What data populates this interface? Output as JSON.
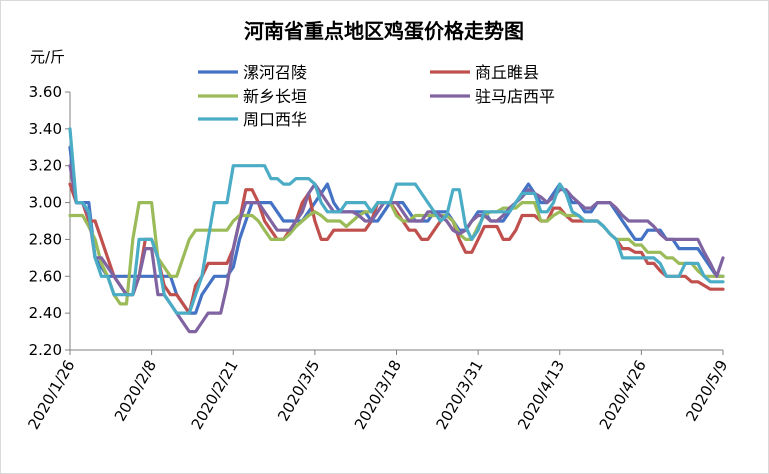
{
  "chart_data": {
    "type": "line",
    "title": "河南省重点地区鸡蛋价格走势图",
    "ylabel": "元/斤",
    "ylim": [
      2.2,
      3.6
    ],
    "yticks": [
      "2.20",
      "2.40",
      "2.60",
      "2.80",
      "3.00",
      "3.20",
      "3.40",
      "3.60"
    ],
    "xtick_labels": [
      "2020/1/26",
      "2020/2/8",
      "2020/2/21",
      "2020/3/5",
      "2020/3/18",
      "2020/3/31",
      "2020/4/13",
      "2020/4/26",
      "2020/5/9"
    ],
    "grid": false,
    "legend_position": "top",
    "series": [
      {
        "name": "漯河召陵",
        "color": "#4472C4",
        "values": [
          3.3,
          3.0,
          3.0,
          3.0,
          2.7,
          2.65,
          2.6,
          2.6,
          2.6,
          2.6,
          2.6,
          2.6,
          2.6,
          2.6,
          2.6,
          2.6,
          2.6,
          2.5,
          2.45,
          2.4,
          2.4,
          2.5,
          2.55,
          2.6,
          2.6,
          2.6,
          2.65,
          2.8,
          2.9,
          3.0,
          3.0,
          3.0,
          3.0,
          2.95,
          2.9,
          2.9,
          2.9,
          2.9,
          2.95,
          3.0,
          3.05,
          3.1,
          3.0,
          2.95,
          2.95,
          2.95,
          2.95,
          2.95,
          2.9,
          2.9,
          2.95,
          3.0,
          3.0,
          3.0,
          2.95,
          2.9,
          2.9,
          2.9,
          2.95,
          2.95,
          2.95,
          2.9,
          2.85,
          2.85,
          2.9,
          2.95,
          2.95,
          2.9,
          2.9,
          2.9,
          2.95,
          3.0,
          3.05,
          3.1,
          3.05,
          3.0,
          3.0,
          3.05,
          3.1,
          3.05,
          3.0,
          3.0,
          2.95,
          2.95,
          3.0,
          3.0,
          3.0,
          2.95,
          2.9,
          2.85,
          2.8,
          2.8,
          2.85,
          2.85,
          2.85,
          2.8,
          2.8,
          2.75,
          2.75,
          2.75,
          2.75,
          2.7,
          2.65,
          2.6,
          2.6
        ]
      },
      {
        "name": "商丘睢县",
        "color": "#C0504D",
        "values": [
          3.1,
          3.0,
          3.0,
          2.9,
          2.9,
          2.8,
          2.7,
          2.6,
          2.55,
          2.5,
          2.5,
          2.6,
          2.8,
          2.8,
          2.7,
          2.55,
          2.5,
          2.5,
          2.45,
          2.4,
          2.55,
          2.6,
          2.67,
          2.67,
          2.67,
          2.67,
          2.75,
          2.9,
          3.07,
          3.07,
          3.0,
          2.9,
          2.85,
          2.8,
          2.8,
          2.85,
          2.9,
          3.0,
          3.05,
          2.9,
          2.8,
          2.8,
          2.85,
          2.85,
          2.85,
          2.85,
          2.85,
          2.85,
          2.9,
          3.0,
          3.0,
          3.0,
          2.95,
          2.9,
          2.85,
          2.85,
          2.8,
          2.8,
          2.85,
          2.9,
          2.93,
          2.9,
          2.8,
          2.73,
          2.73,
          2.8,
          2.87,
          2.87,
          2.87,
          2.8,
          2.8,
          2.85,
          2.93,
          2.93,
          2.93,
          2.9,
          2.9,
          2.97,
          2.97,
          2.93,
          2.9,
          2.9,
          2.9,
          2.9,
          2.9,
          2.87,
          2.83,
          2.8,
          2.75,
          2.75,
          2.73,
          2.73,
          2.67,
          2.67,
          2.63,
          2.6,
          2.6,
          2.6,
          2.6,
          2.57,
          2.57,
          2.55,
          2.53,
          2.53,
          2.53
        ]
      },
      {
        "name": "新乡长垣",
        "color": "#9BBB59",
        "values": [
          2.93,
          2.93,
          2.93,
          2.87,
          2.8,
          2.67,
          2.6,
          2.5,
          2.45,
          2.45,
          2.8,
          3.0,
          3.0,
          3.0,
          2.7,
          2.65,
          2.6,
          2.6,
          2.7,
          2.8,
          2.85,
          2.85,
          2.85,
          2.85,
          2.85,
          2.85,
          2.9,
          2.93,
          2.93,
          2.93,
          2.9,
          2.85,
          2.8,
          2.8,
          2.8,
          2.83,
          2.87,
          2.9,
          2.93,
          2.95,
          2.93,
          2.9,
          2.9,
          2.9,
          2.87,
          2.9,
          2.93,
          2.95,
          2.95,
          3.0,
          3.0,
          3.0,
          2.93,
          2.9,
          2.9,
          2.93,
          2.93,
          2.93,
          2.93,
          2.93,
          2.93,
          2.9,
          2.83,
          2.8,
          2.8,
          2.87,
          2.93,
          2.95,
          2.95,
          2.97,
          2.97,
          2.97,
          3.0,
          3.0,
          3.0,
          2.9,
          2.9,
          2.93,
          2.95,
          2.93,
          2.93,
          2.93,
          2.9,
          2.9,
          2.9,
          2.87,
          2.83,
          2.8,
          2.8,
          2.8,
          2.77,
          2.77,
          2.73,
          2.73,
          2.73,
          2.7,
          2.7,
          2.67,
          2.67,
          2.67,
          2.63,
          2.6,
          2.6,
          2.6,
          2.6
        ]
      },
      {
        "name": "驻马店西平",
        "color": "#8064A2",
        "values": [
          3.2,
          3.0,
          3.0,
          2.93,
          2.7,
          2.7,
          2.65,
          2.6,
          2.55,
          2.5,
          2.5,
          2.6,
          2.75,
          2.75,
          2.5,
          2.5,
          2.45,
          2.4,
          2.35,
          2.3,
          2.3,
          2.35,
          2.4,
          2.4,
          2.4,
          2.55,
          2.75,
          2.9,
          3.0,
          3.0,
          3.0,
          2.95,
          2.9,
          2.85,
          2.85,
          2.85,
          2.9,
          2.95,
          3.05,
          3.1,
          3.05,
          3.0,
          2.95,
          2.95,
          2.95,
          2.95,
          2.93,
          2.9,
          2.9,
          2.95,
          3.0,
          3.0,
          3.0,
          2.95,
          2.9,
          2.9,
          2.9,
          2.95,
          2.95,
          2.93,
          2.9,
          2.85,
          2.83,
          2.85,
          2.9,
          2.93,
          2.93,
          2.9,
          2.9,
          2.93,
          2.97,
          3.0,
          3.03,
          3.07,
          3.05,
          3.03,
          3.0,
          3.03,
          3.07,
          3.07,
          3.03,
          3.0,
          2.97,
          2.97,
          3.0,
          3.0,
          3.0,
          2.97,
          2.93,
          2.9,
          2.9,
          2.9,
          2.9,
          2.87,
          2.83,
          2.8,
          2.8,
          2.8,
          2.8,
          2.8,
          2.8,
          2.73,
          2.67,
          2.6,
          2.7
        ]
      },
      {
        "name": "周口西华",
        "color": "#4BACC6",
        "values": [
          3.4,
          3.0,
          3.0,
          2.95,
          2.7,
          2.6,
          2.6,
          2.5,
          2.5,
          2.5,
          2.5,
          2.8,
          2.8,
          2.8,
          2.7,
          2.5,
          2.45,
          2.4,
          2.4,
          2.4,
          2.5,
          2.6,
          2.8,
          3.0,
          3.0,
          3.0,
          3.2,
          3.2,
          3.2,
          3.2,
          3.2,
          3.2,
          3.13,
          3.13,
          3.1,
          3.1,
          3.13,
          3.13,
          3.13,
          3.1,
          3.0,
          2.95,
          2.95,
          2.95,
          3.0,
          3.0,
          3.0,
          3.0,
          2.95,
          3.0,
          3.0,
          3.0,
          3.1,
          3.1,
          3.1,
          3.1,
          3.05,
          3.0,
          2.95,
          2.9,
          2.93,
          3.07,
          3.07,
          2.87,
          2.8,
          2.85,
          2.95,
          2.95,
          2.95,
          2.95,
          2.95,
          3.0,
          3.05,
          3.05,
          3.05,
          2.95,
          2.95,
          3.0,
          3.1,
          3.05,
          2.95,
          2.93,
          2.9,
          2.9,
          2.9,
          2.87,
          2.83,
          2.8,
          2.7,
          2.7,
          2.7,
          2.7,
          2.7,
          2.7,
          2.67,
          2.6,
          2.6,
          2.6,
          2.67,
          2.67,
          2.67,
          2.6,
          2.57,
          2.57,
          2.57
        ]
      }
    ]
  }
}
